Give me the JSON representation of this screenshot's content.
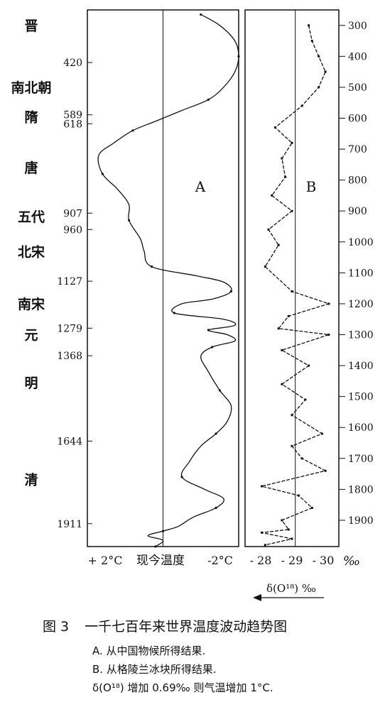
{
  "chart_data": [
    {
      "type": "line",
      "panel_label": "A",
      "x_tick_labels": [
        "+ 2°C",
        "现今温度",
        "-2°C"
      ],
      "xlim": [
        2,
        -2
      ],
      "ylim": [
        250,
        1985
      ],
      "reference_line": 0,
      "y_tick_labels": [
        420,
        589,
        618,
        907,
        960,
        1127,
        1279,
        1368,
        1644,
        1911
      ],
      "dynasties": [
        {
          "name": "晋",
          "year": 300
        },
        {
          "name": "南北朝",
          "year": 500
        },
        {
          "name": "隋",
          "year": 595
        },
        {
          "name": "唐",
          "year": 760
        },
        {
          "name": "五代",
          "year": 918
        },
        {
          "name": "北宋",
          "year": 1032
        },
        {
          "name": "南宋",
          "year": 1200
        },
        {
          "name": "元",
          "year": 1300
        },
        {
          "name": "明",
          "year": 1455
        },
        {
          "name": "清",
          "year": 1768
        }
      ],
      "series": [
        {
          "points": [
            [
              -1.0,
              265
            ],
            [
              -1.5,
              300
            ],
            [
              -1.9,
              350
            ],
            [
              -2.0,
              400
            ],
            [
              -1.9,
              450
            ],
            [
              -1.6,
              500
            ],
            [
              -1.2,
              540
            ],
            [
              -0.5,
              575
            ],
            [
              0.2,
              610
            ],
            [
              0.8,
              640
            ],
            [
              1.3,
              680
            ],
            [
              1.7,
              720
            ],
            [
              1.6,
              780
            ],
            [
              1.2,
              830
            ],
            [
              0.9,
              880
            ],
            [
              0.9,
              930
            ],
            [
              0.6,
              990
            ],
            [
              0.5,
              1030
            ],
            [
              0.3,
              1080
            ],
            [
              -0.9,
              1110
            ],
            [
              -1.6,
              1130
            ],
            [
              -1.8,
              1160
            ],
            [
              -1.3,
              1185
            ],
            [
              -0.5,
              1200
            ],
            [
              -0.3,
              1230
            ],
            [
              -1.6,
              1250
            ],
            [
              -1.9,
              1270
            ],
            [
              -1.2,
              1285
            ],
            [
              -1.7,
              1300
            ],
            [
              -1.9,
              1320
            ],
            [
              -1.3,
              1340
            ],
            [
              -1.0,
              1370
            ],
            [
              -1.2,
              1420
            ],
            [
              -1.5,
              1480
            ],
            [
              -1.8,
              1530
            ],
            [
              -1.7,
              1580
            ],
            [
              -1.4,
              1620
            ],
            [
              -1.0,
              1660
            ],
            [
              -0.7,
              1710
            ],
            [
              -0.5,
              1760
            ],
            [
              -1.1,
              1800
            ],
            [
              -1.6,
              1830
            ],
            [
              -1.4,
              1860
            ],
            [
              -0.8,
              1890
            ],
            [
              -0.4,
              1920
            ],
            [
              0.0,
              1935
            ],
            [
              0.4,
              1950
            ],
            [
              0.0,
              1965
            ],
            [
              0.2,
              1985
            ]
          ]
        }
      ]
    },
    {
      "type": "line",
      "panel_label": "B",
      "xlabel": "δ(O¹⁸) ‰",
      "unit": "‰",
      "x_ticks": [
        -28,
        -29,
        -30
      ],
      "x_tick_labels": [
        "- 28",
        "- 29",
        "- 30"
      ],
      "xlim": [
        -27.5,
        -30.3
      ],
      "ylim": [
        250,
        1985
      ],
      "reference_line": -29,
      "y_ticks": [
        300,
        400,
        500,
        600,
        700,
        800,
        900,
        1000,
        1100,
        1200,
        1300,
        1400,
        1500,
        1600,
        1700,
        1800,
        1900
      ],
      "series": [
        {
          "points": [
            [
              -29.4,
              300
            ],
            [
              -29.5,
              350
            ],
            [
              -29.7,
              400
            ],
            [
              -29.9,
              450
            ],
            [
              -29.7,
              500
            ],
            [
              -29.2,
              560
            ],
            [
              -28.4,
              630
            ],
            [
              -28.9,
              680
            ],
            [
              -28.6,
              730
            ],
            [
              -28.7,
              790
            ],
            [
              -28.3,
              850
            ],
            [
              -28.9,
              900
            ],
            [
              -28.2,
              960
            ],
            [
              -28.5,
              1010
            ],
            [
              -28.1,
              1080
            ],
            [
              -28.9,
              1160
            ],
            [
              -30.0,
              1200
            ],
            [
              -28.8,
              1240
            ],
            [
              -28.5,
              1280
            ],
            [
              -30.0,
              1300
            ],
            [
              -28.6,
              1350
            ],
            [
              -29.4,
              1400
            ],
            [
              -28.6,
              1460
            ],
            [
              -29.3,
              1510
            ],
            [
              -28.9,
              1560
            ],
            [
              -29.8,
              1620
            ],
            [
              -28.9,
              1660
            ],
            [
              -29.2,
              1700
            ],
            [
              -29.9,
              1740
            ],
            [
              -28.0,
              1790
            ],
            [
              -29.1,
              1820
            ],
            [
              -29.5,
              1860
            ],
            [
              -28.6,
              1900
            ],
            [
              -28.8,
              1930
            ],
            [
              -28.0,
              1940
            ],
            [
              -28.9,
              1960
            ],
            [
              -28.1,
              1980
            ]
          ]
        }
      ]
    }
  ],
  "caption": {
    "figure_number": "图 3",
    "title": "一千七百年来世界温度波动趋势图",
    "notes": [
      "A. 从中国物候所得结果.",
      "B. 从格陵兰冰块所得结果.",
      "δ(O¹⁸) 增加 0.69‰ 则气温增加 1°C."
    ]
  }
}
